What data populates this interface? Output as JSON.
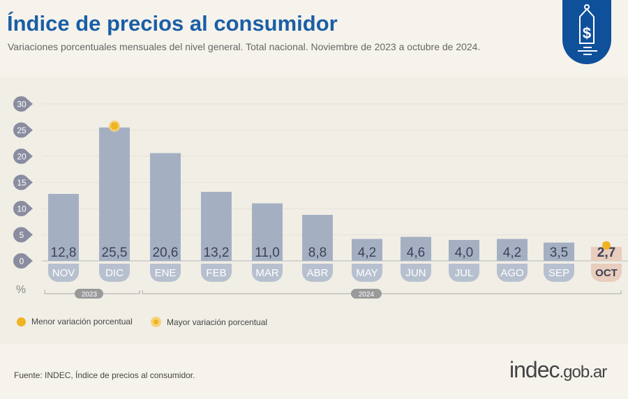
{
  "header": {
    "title": "Índice de precios al consumidor",
    "subtitle": "Variaciones porcentuales mensuales del nivel general. Total nacional. Noviembre de 2023 a octubre de 2024."
  },
  "chart_data": {
    "type": "bar",
    "categories": [
      "NOV",
      "DIC",
      "ENE",
      "FEB",
      "MAR",
      "ABR",
      "MAY",
      "JUN",
      "JUL",
      "AGO",
      "SEP",
      "OCT"
    ],
    "values": [
      12.8,
      25.5,
      20.6,
      13.2,
      11.0,
      8.8,
      4.2,
      4.6,
      4.0,
      4.2,
      3.5,
      2.7
    ],
    "value_labels": [
      "12,8",
      "25,5",
      "20,6",
      "13,2",
      "11,0",
      "8,8",
      "4,2",
      "4,6",
      "4,0",
      "4,2",
      "3,5",
      "2,7"
    ],
    "ylabel": "%",
    "ylim": [
      0,
      30
    ],
    "yticks": [
      "0",
      "5",
      "10",
      "15",
      "20",
      "25",
      "30"
    ],
    "grid": true,
    "year_groups": [
      {
        "label": "2023",
        "months": [
          "NOV",
          "DIC"
        ]
      },
      {
        "label": "2024",
        "months": [
          "ENE",
          "FEB",
          "MAR",
          "ABR",
          "MAY",
          "JUN",
          "JUL",
          "AGO",
          "SEP",
          "OCT"
        ]
      }
    ],
    "highlight": {
      "min": "OCT",
      "max": "DIC"
    },
    "colors": {
      "bar": "#a4b0c2",
      "bar_highlight": "#e9cdbd",
      "marker": "#f0b323",
      "tick_bubble": "#8a8da0"
    }
  },
  "legend": {
    "min_label": "Menor variación porcentual",
    "max_label": "Mayor variación porcentual"
  },
  "footer": {
    "source": "Fuente: INDEC, Índice de precios al consumidor.",
    "brand": "indec",
    "brand_suffix": ".gob.ar"
  }
}
